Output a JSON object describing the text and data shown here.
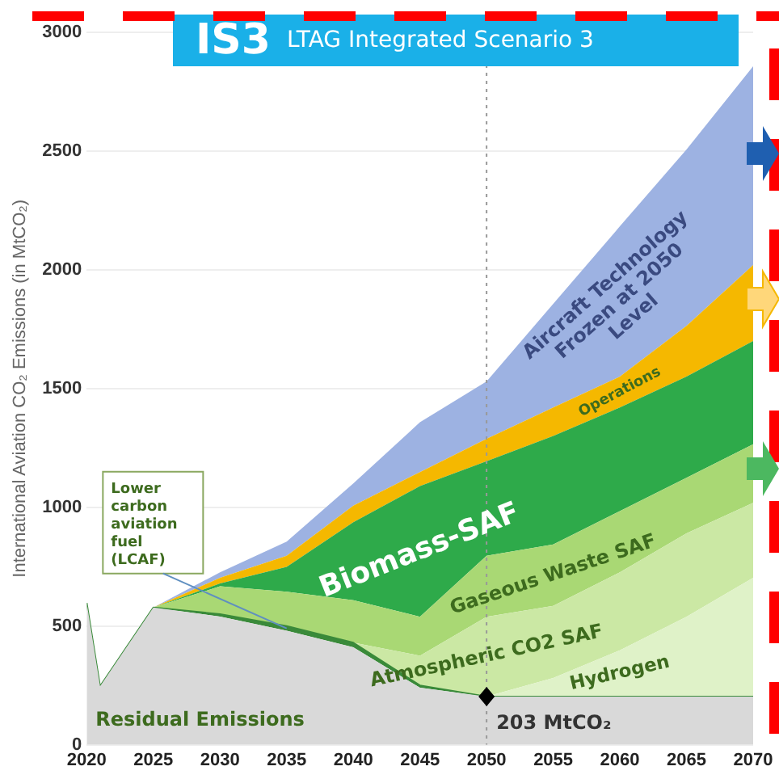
{
  "chart_data": {
    "type": "area",
    "stacked": true,
    "title": "IS3",
    "subtitle": "LTAG Integrated Scenario 3",
    "ylabel": "International Aviation CO₂ Emissions (in MtCO₂)",
    "x": [
      2020,
      2021,
      2025,
      2030,
      2035,
      2040,
      2045,
      2050,
      2055,
      2060,
      2065,
      2070
    ],
    "xlim": [
      2020,
      2070
    ],
    "xticks": [
      2020,
      2025,
      2030,
      2035,
      2040,
      2045,
      2050,
      2055,
      2060,
      2065,
      2070
    ],
    "ylim": [
      0,
      3000
    ],
    "yticks": [
      0,
      500,
      1000,
      1500,
      2000,
      2500,
      3000
    ],
    "grid": "y",
    "legend": false,
    "series": [
      {
        "name": "Residual Emissions",
        "color": "#d9d9d9",
        "values": [
          597,
          246,
          578,
          540,
          480,
          410,
          240,
          203,
          203,
          203,
          203,
          203
        ]
      },
      {
        "name": "Lower carbon aviation fuel (LCAF)",
        "color": "#3a8a3a",
        "values": [
          0,
          0,
          0,
          10,
          20,
          20,
          10,
          0,
          0,
          0,
          0,
          0
        ]
      },
      {
        "name": "Hydrogen",
        "color": "#dff2c8",
        "values": [
          0,
          0,
          0,
          0,
          0,
          0,
          0,
          0,
          78,
          195,
          336,
          500
        ]
      },
      {
        "name": "Atmospheric CO2 SAF",
        "color": "#cbe8a4",
        "values": [
          0,
          0,
          0,
          0,
          0,
          0,
          125,
          336,
          304,
          328,
          351,
          316
        ]
      },
      {
        "name": "Gaseous Waste SAF",
        "color": "#a9d874",
        "values": [
          0,
          0,
          0,
          117,
          144,
          179,
          164,
          257,
          258,
          258,
          234,
          246
        ]
      },
      {
        "name": "Biomass-SAF",
        "color": "#2eaa4a",
        "values": [
          0,
          0,
          0,
          12,
          105,
          328,
          550,
          398,
          457,
          436,
          426,
          435
        ]
      },
      {
        "name": "Operations",
        "color": "#f5b800",
        "values": [
          0,
          0,
          0,
          24,
          47,
          70,
          59,
          94,
          120,
          130,
          214,
          320
        ]
      },
      {
        "name": "Aircraft Technology Frozen at 2050 Level",
        "color": "#9db2e2",
        "values": [
          0,
          0,
          0,
          23,
          59,
          93,
          210,
          242,
          437,
          633,
          743,
          837
        ]
      }
    ],
    "ref_lines": [
      {
        "axis": "x",
        "value": 2050,
        "color": "#999999",
        "line_style": "dotted"
      }
    ],
    "annotations": [
      {
        "text": "203 MtCO₂",
        "x": 2050,
        "y": 203
      }
    ]
  }
}
